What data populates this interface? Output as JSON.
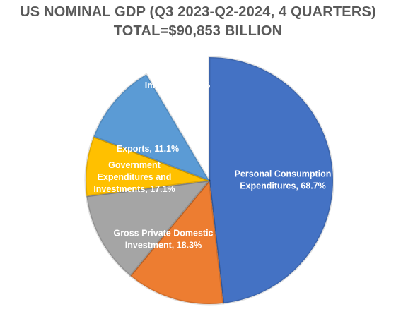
{
  "title": "US NOMINAL GDP (Q3 2023-Q2-2024, 4 QUARTERS)",
  "subtitle": "TOTAL=$90,853 BILLION",
  "chart_data": {
    "type": "pie",
    "title": "US NOMINAL GDP (Q3 2023-Q2-2024, 4 QUARTERS)",
    "subtitle": "TOTAL=$90,853 BILLION",
    "slices": [
      {
        "label_lines": [
          "Personal Consumption",
          "Expenditures, 68.7%"
        ],
        "category": "Personal Consumption Expenditures",
        "value": 68.7,
        "display_share": 0.482,
        "color": "#4472C4",
        "offset": 0
      },
      {
        "label_lines": [
          "Gross Private Domestic",
          "Investment, 18.3%"
        ],
        "category": "Gross Private Domestic Investment",
        "value": 18.3,
        "display_share": 0.128,
        "color": "#ED7D31",
        "offset": 0
      },
      {
        "label_lines": [
          "Government",
          "Expenditures and",
          "Investments, 17.1%"
        ],
        "category": "Government Expenditures and Investments",
        "value": 17.1,
        "display_share": 0.12,
        "color": "#A5A5A5",
        "offset": 0
      },
      {
        "label_lines": [
          "Exports, 11.1%"
        ],
        "category": "Exports",
        "value": 11.1,
        "display_share": 0.078,
        "color": "#FFC000",
        "offset": 0
      },
      {
        "label_lines": [
          "Imports, -15.3%"
        ],
        "category": "Imports",
        "value": -15.3,
        "display_share": 0.107,
        "color": "#5B9BD5",
        "offset": 0
      },
      {
        "label_lines": [],
        "category": "Gap",
        "value": null,
        "display_share": 0.085,
        "color": "#ffffff",
        "offset": 0
      }
    ]
  }
}
